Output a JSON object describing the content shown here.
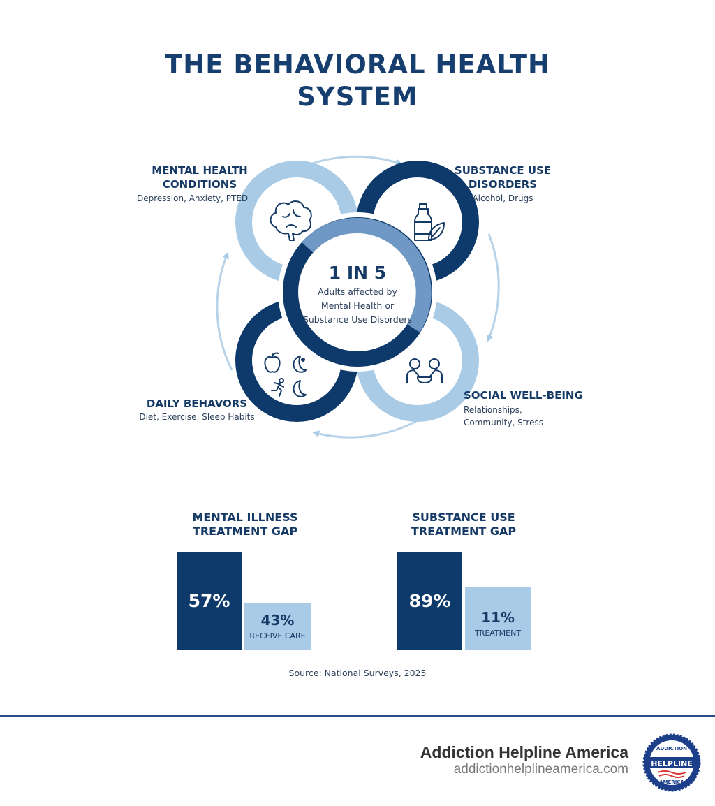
{
  "title": {
    "line1": "THE BEHAVIORAL HEALTH",
    "line2": "SYSTEM"
  },
  "diagram": {
    "nodes": [
      {
        "title1": "MENTAL HEALTH",
        "title2": "CONDITIONS",
        "desc": "Depression, Anxiety, PTED",
        "icon": "brain-icon",
        "color": "#a9cbe6"
      },
      {
        "title1": "SUBSTANCE USE",
        "title2": "DISORDERS",
        "desc": "Alcohol, Drugs",
        "icon": "bottle-leaf-icon",
        "color": "#0e3a6b"
      },
      {
        "title1": "SOCIAL WELL-BEING",
        "desc1": "Relationships,",
        "desc2": "Community, Stress",
        "icon": "people-icon",
        "color": "#a9cbe6"
      },
      {
        "title1": "DAILY BEHAVORS",
        "desc": "Diet, Exercise, Sleep Habits",
        "icon": "apple-moon-runner-icon",
        "color": "#0e3a6b"
      }
    ],
    "center": {
      "stat": "1 IN 5",
      "line1": "Adults affected by",
      "line2": "Mental Health or",
      "line3": "Substance Use Disorders"
    }
  },
  "gaps": [
    {
      "title1": "MENTAL ILLNESS",
      "title2": "TREATMENT GAP",
      "bars": [
        {
          "value": "57%",
          "label": ""
        },
        {
          "value": "43%",
          "label": "RECEIVE CARE"
        }
      ]
    },
    {
      "title1": "SUBSTANCE USE",
      "title2": "TREATMENT GAP",
      "bars": [
        {
          "value": "89%",
          "label": ""
        },
        {
          "value": "11%",
          "label": "TREATMENT"
        }
      ]
    }
  ],
  "chart_data": [
    {
      "type": "bar",
      "title": "MENTAL ILLNESS TREATMENT GAP",
      "categories": [
        "",
        "RECEIVE CARE"
      ],
      "values": [
        57,
        43
      ]
    },
    {
      "type": "bar",
      "title": "SUBSTANCE USE TREATMENT GAP",
      "categories": [
        "",
        "TREATMENT"
      ],
      "values": [
        89,
        11
      ]
    }
  ],
  "source": "Source: National Surveys, 2025",
  "footer": {
    "brand": "Addiction Helpline America",
    "url": "addictionhelplineamerica.com",
    "logo_text": "ADDICTION HELPLINE AMERICA"
  },
  "colors": {
    "dark": "#0e3a6b",
    "light": "#a9cbe8",
    "medium": "#6f98c4",
    "rule": "#2c4c8c"
  }
}
